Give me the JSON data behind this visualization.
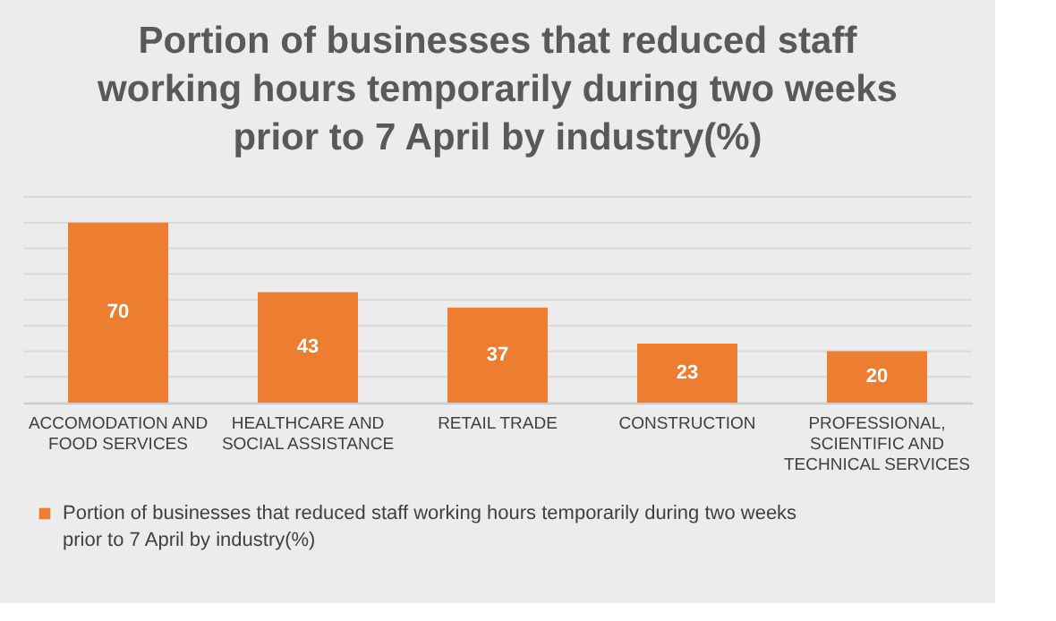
{
  "chart_data": {
    "type": "bar",
    "title": "Portion of businesses that reduced staff working hours temporarily during two weeks prior to 7 April by industry(%)",
    "categories": [
      "ACCOMODATION AND FOOD SERVICES",
      "HEALTHCARE AND SOCIAL ASSISTANCE",
      "RETAIL TRADE",
      "CONSTRUCTION",
      "PROFESSIONAL, SCIENTIFIC AND TECHNICAL SERVICES"
    ],
    "series": [
      {
        "name": "Portion of businesses that reduced staff working hours temporarily during two weeks prior to 7 April by industry(%)",
        "color": "#ed7d31",
        "values": [
          70,
          43,
          37,
          23,
          20
        ]
      }
    ],
    "ylim": [
      0,
      80
    ],
    "yticks": [
      {
        "value": 0,
        "label": null
      },
      {
        "value": 10,
        "label": null
      },
      {
        "value": 20,
        "label": null
      },
      {
        "value": 30,
        "label": null
      },
      {
        "value": 40,
        "label": null
      },
      {
        "value": 50,
        "label": null
      },
      {
        "value": 60,
        "label": null
      },
      {
        "value": 70,
        "label": null
      },
      {
        "value": 80,
        "label": null
      }
    ],
    "tick_labels": "x",
    "grid": "y",
    "data_labels": true,
    "legend": "bottom"
  }
}
